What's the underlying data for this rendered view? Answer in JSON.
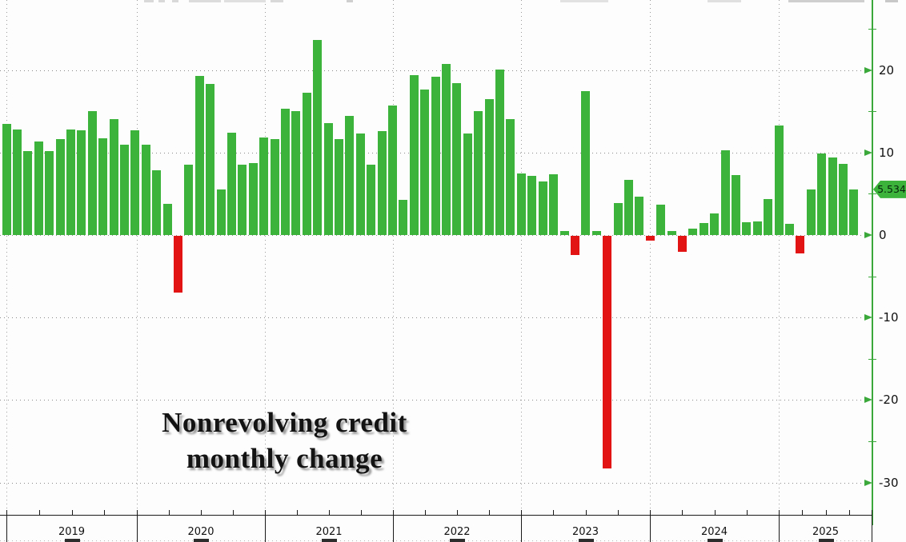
{
  "title": {
    "line1": "Nonrevolving credit",
    "line2": "monthly change"
  },
  "colors": {
    "positive_bar": "#3cb43c",
    "negative_bar": "#e21414",
    "axis_green": "#3aa83a",
    "badge_bg": "#3cb43c",
    "grid": "#8a8a8a",
    "background": "#fdfdfd",
    "text": "#111111"
  },
  "y_axis": {
    "side": "right",
    "major_tick_labels": [
      "20",
      "10",
      "0",
      "-10",
      "-20",
      "-30"
    ],
    "major_tick_values": [
      20,
      10,
      0,
      -10,
      -20,
      -30
    ],
    "minor_tick_values": [
      25,
      15,
      5,
      -5,
      -15,
      -25
    ],
    "current_value_label": "5.534"
  },
  "x_axis": {
    "years": [
      "2019",
      "2020",
      "2021",
      "2022",
      "2023",
      "2024",
      "2025"
    ]
  },
  "chart_data": {
    "type": "bar",
    "title": "Nonrevolving credit monthly change",
    "xlabel": "",
    "ylabel": "",
    "ylim": [
      -34,
      28.5
    ],
    "grid": "dotted",
    "legend_position": "none",
    "latest_value": 5.534,
    "x": [
      "2018-12",
      "2019-01",
      "2019-02",
      "2019-03",
      "2019-04",
      "2019-05",
      "2019-06",
      "2019-07",
      "2019-08",
      "2019-09",
      "2019-10",
      "2019-11",
      "2019-12",
      "2020-01",
      "2020-02",
      "2020-03",
      "2020-04",
      "2020-05",
      "2020-06",
      "2020-07",
      "2020-08",
      "2020-09",
      "2020-10",
      "2020-11",
      "2020-12",
      "2021-01",
      "2021-02",
      "2021-03",
      "2021-04",
      "2021-05",
      "2021-06",
      "2021-07",
      "2021-08",
      "2021-09",
      "2021-10",
      "2021-11",
      "2021-12",
      "2022-01",
      "2022-02",
      "2022-03",
      "2022-04",
      "2022-05",
      "2022-06",
      "2022-07",
      "2022-08",
      "2022-09",
      "2022-10",
      "2022-11",
      "2022-12",
      "2023-01",
      "2023-02",
      "2023-03",
      "2023-04",
      "2023-05",
      "2023-06",
      "2023-07",
      "2023-08",
      "2023-09",
      "2023-10",
      "2023-11",
      "2023-12",
      "2024-01",
      "2024-02",
      "2024-03",
      "2024-04",
      "2024-05",
      "2024-06",
      "2024-07",
      "2024-08",
      "2024-09",
      "2024-10",
      "2024-11",
      "2024-12",
      "2025-01",
      "2025-02",
      "2025-03",
      "2025-04",
      "2025-05",
      "2025-06",
      "2025-07"
    ],
    "values": [
      13.5,
      12.8,
      10.2,
      11.3,
      10.2,
      11.6,
      12.8,
      12.7,
      15.0,
      11.7,
      14.1,
      11.0,
      12.7,
      11.0,
      7.9,
      3.8,
      -6.9,
      8.5,
      19.3,
      18.3,
      5.5,
      12.4,
      8.5,
      8.7,
      11.8,
      11.6,
      15.3,
      15.0,
      17.3,
      23.6,
      13.6,
      11.6,
      14.4,
      12.3,
      8.5,
      12.6,
      15.7,
      4.3,
      19.4,
      17.6,
      19.2,
      20.7,
      18.4,
      12.3,
      15.0,
      16.5,
      20.1,
      14.1,
      7.5,
      7.2,
      6.5,
      7.4,
      0.5,
      -2.3,
      17.4,
      0.5,
      -28.2,
      3.9,
      6.7,
      4.7,
      -0.6,
      3.7,
      0.5,
      -1.9,
      0.8,
      1.5,
      2.6,
      10.3,
      7.3,
      1.6,
      1.7,
      4.4,
      13.3,
      1.4,
      -2.1,
      5.5,
      9.9,
      9.4,
      8.6,
      5.534
    ]
  }
}
